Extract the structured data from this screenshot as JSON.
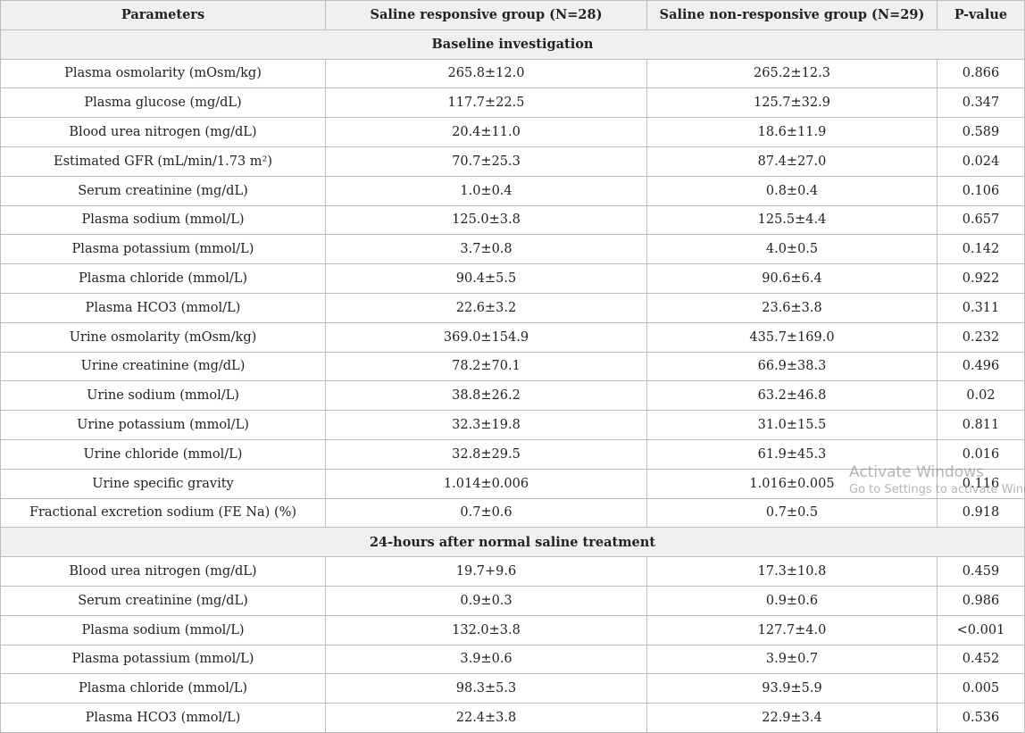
{
  "table": {
    "header": [
      "Parameters",
      "Saline responsive group (N=28)",
      "Saline non-responsive group (N=29)",
      "P-value"
    ],
    "sections": [
      {
        "title": "Baseline investigation",
        "rows": [
          [
            "Plasma osmolarity (mOsm/kg)",
            "265.8±12.0",
            "265.2±12.3",
            "0.866"
          ],
          [
            "Plasma glucose (mg/dL)",
            "117.7±22.5",
            "125.7±32.9",
            "0.347"
          ],
          [
            "Blood urea nitrogen (mg/dL)",
            "20.4±11.0",
            "18.6±11.9",
            "0.589"
          ],
          [
            "Estimated GFR (mL/min/1.73 m²)",
            "70.7±25.3",
            "87.4±27.0",
            "0.024"
          ],
          [
            "Serum creatinine (mg/dL)",
            "1.0±0.4",
            "0.8±0.4",
            "0.106"
          ],
          [
            "Plasma sodium (mmol/L)",
            "125.0±3.8",
            "125.5±4.4",
            "0.657"
          ],
          [
            "Plasma potassium (mmol/L)",
            "3.7±0.8",
            "4.0±0.5",
            "0.142"
          ],
          [
            "Plasma chloride (mmol/L)",
            "90.4±5.5",
            "90.6±6.4",
            "0.922"
          ],
          [
            "Plasma HCO3 (mmol/L)",
            "22.6±3.2",
            "23.6±3.8",
            "0.311"
          ],
          [
            "Urine osmolarity (mOsm/kg)",
            "369.0±154.9",
            "435.7±169.0",
            "0.232"
          ],
          [
            "Urine creatinine (mg/dL)",
            "78.2±70.1",
            "66.9±38.3",
            "0.496"
          ],
          [
            "Urine sodium (mmol/L)",
            "38.8±26.2",
            "63.2±46.8",
            "0.02"
          ],
          [
            "Urine potassium (mmol/L)",
            "32.3±19.8",
            "31.0±15.5",
            "0.811"
          ],
          [
            "Urine chloride (mmol/L)",
            "32.8±29.5",
            "61.9±45.3",
            "0.016"
          ],
          [
            "Urine specific gravity",
            "1.014±0.006",
            "1.016±0.005",
            "0.116"
          ],
          [
            "Fractional excretion sodium (FE Na) (%)",
            "0.7±0.6",
            "0.7±0.5",
            "0.918"
          ]
        ]
      },
      {
        "title": "24-hours after normal saline treatment",
        "rows": [
          [
            "Blood urea nitrogen (mg/dL)",
            "19.7+9.6",
            "17.3±10.8",
            "0.459"
          ],
          [
            "Serum creatinine (mg/dL)",
            "0.9±0.3",
            "0.9±0.6",
            "0.986"
          ],
          [
            "Plasma sodium (mmol/L)",
            "132.0±3.8",
            "127.7±4.0",
            "<0.001"
          ],
          [
            "Plasma potassium (mmol/L)",
            "3.9±0.6",
            "3.9±0.7",
            "0.452"
          ],
          [
            "Plasma chloride (mmol/L)",
            "98.3±5.3",
            "93.9±5.9",
            "0.005"
          ],
          [
            "Plasma HCO3 (mmol/L)",
            "22.4±3.8",
            "22.9±3.4",
            "0.536"
          ]
        ]
      }
    ]
  },
  "watermark": {
    "line1": "Activate Windows",
    "line2": "Go to Settings to activate Windows."
  }
}
